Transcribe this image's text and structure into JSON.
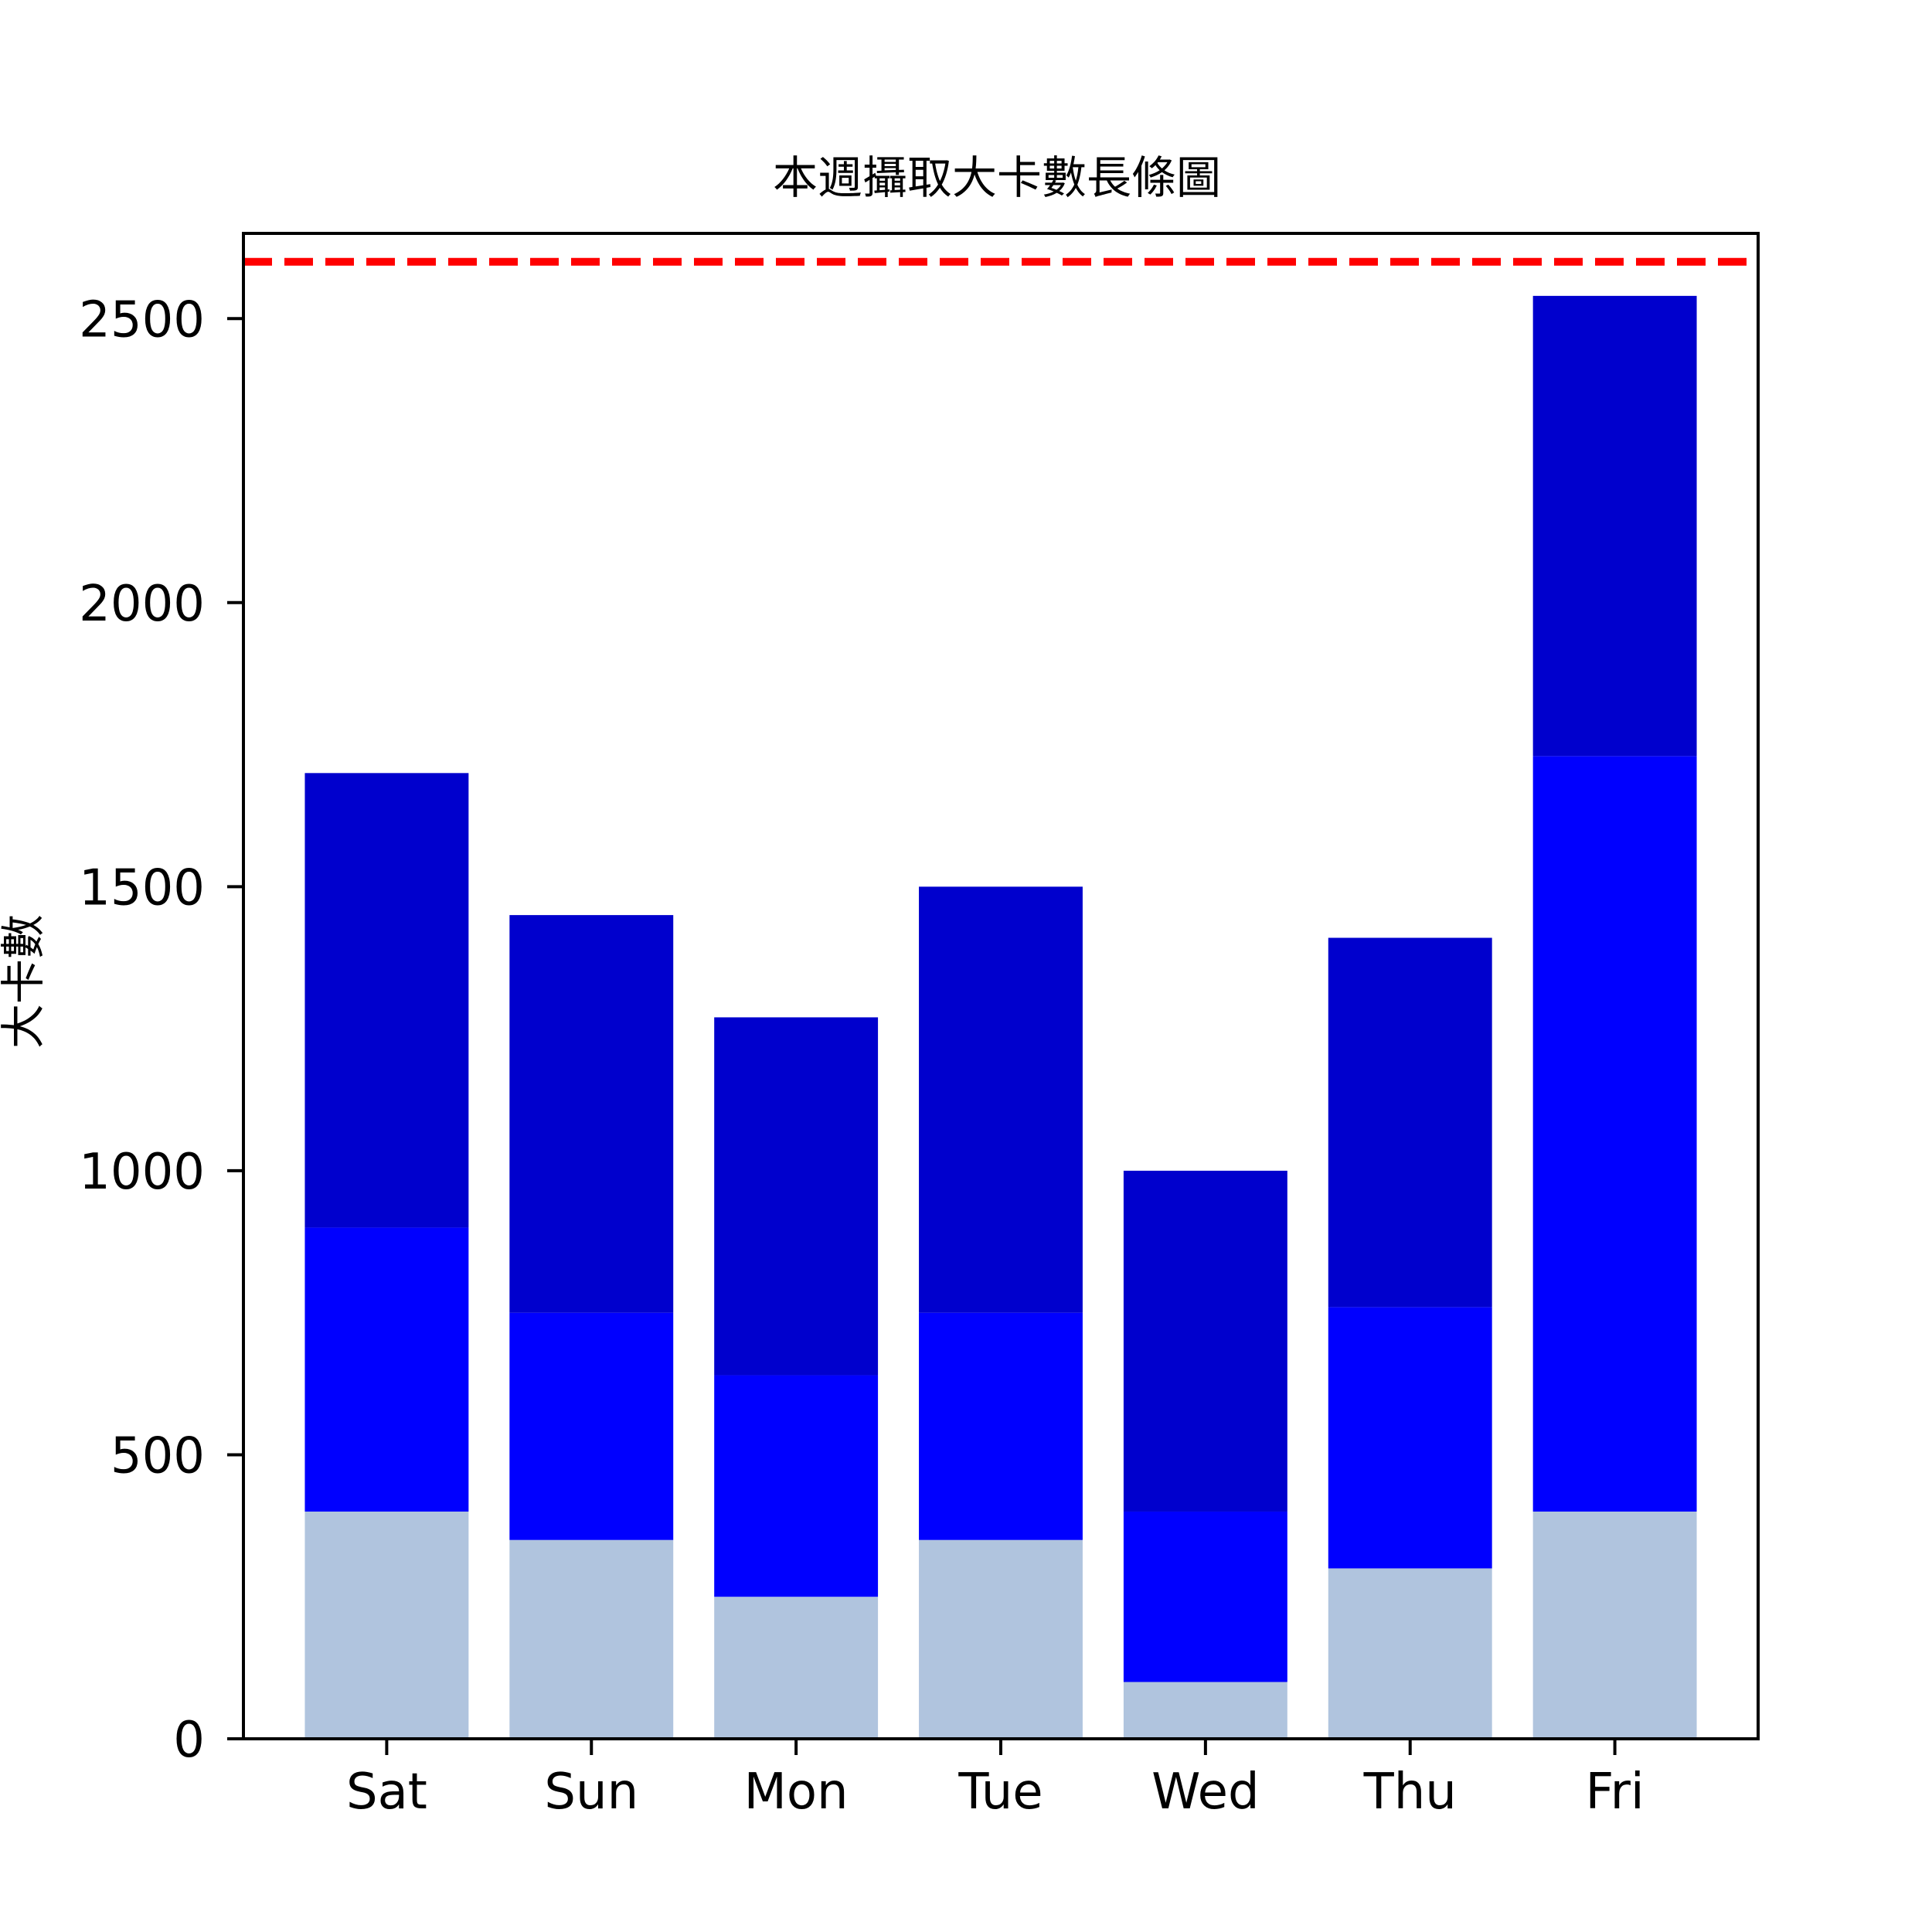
{
  "chart_data": {
    "type": "bar",
    "stacked": true,
    "title": "本週攝取大卡數長條圖",
    "xlabel": "",
    "ylabel": "大卡數",
    "categories": [
      "Sat",
      "Sun",
      "Mon",
      "Tue",
      "Wed",
      "Thu",
      "Fri"
    ],
    "series": [
      {
        "values": [
          400,
          350,
          250,
          350,
          100,
          300,
          400
        ],
        "color": "#b0c4de"
      },
      {
        "values": [
          500,
          400,
          390,
          400,
          300,
          460,
          1330
        ],
        "color": "#0000ff"
      },
      {
        "values": [
          800,
          700,
          630,
          750,
          600,
          650,
          810
        ],
        "color": "#0000cd"
      }
    ],
    "totals": [
      1700,
      1450,
      1270,
      1500,
      1000,
      1410,
      2540
    ],
    "reference_line": {
      "value": 2600,
      "color": "#ff0000",
      "style": "dashed"
    },
    "ylim": [
      0,
      2650
    ],
    "yticks": [
      0,
      500,
      1000,
      1500,
      2000,
      2500
    ],
    "grid": false,
    "legend": "none"
  }
}
